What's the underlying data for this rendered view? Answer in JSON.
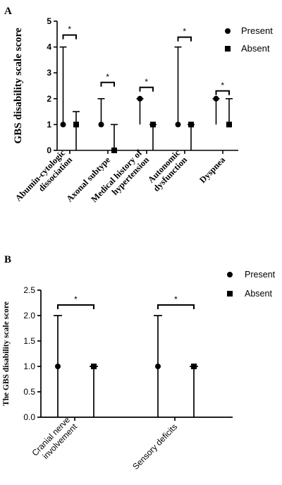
{
  "chart_data": [
    {
      "panel": "A",
      "type": "scatter",
      "ylabel": "GBS disability scale score",
      "ylim": [
        0,
        5
      ],
      "yticks": [
        0,
        1,
        2,
        3,
        4,
        5
      ],
      "legend": {
        "placement": "top-right",
        "entries": [
          "Present",
          "Absent"
        ]
      },
      "categories": [
        {
          "label": [
            "Abumin-cytologic",
            "dissociation"
          ],
          "present": {
            "median": 1,
            "low": 1,
            "high": 4
          },
          "absent": {
            "median": 1,
            "low": 0,
            "high": 1.5
          },
          "significance": "*"
        },
        {
          "label": [
            "Axonal subtype"
          ],
          "present": {
            "median": 1,
            "low": 1,
            "high": 2
          },
          "absent": {
            "median": 0,
            "low": 0,
            "high": 1
          },
          "significance": "*"
        },
        {
          "label": [
            "Medical history of",
            "hypertension"
          ],
          "present": {
            "median": 2,
            "low": 1,
            "high": 2
          },
          "absent": {
            "median": 1,
            "low": 0,
            "high": 1
          },
          "significance": "*"
        },
        {
          "label": [
            "Autonomic",
            "dysfunction"
          ],
          "present": {
            "median": 1,
            "low": 1,
            "high": 4
          },
          "absent": {
            "median": 1,
            "low": 0,
            "high": 1
          },
          "significance": "*"
        },
        {
          "label": [
            "Dyspnea"
          ],
          "present": {
            "median": 2,
            "low": 1,
            "high": 2
          },
          "absent": {
            "median": 1,
            "low": 1,
            "high": 2
          },
          "significance": "*"
        }
      ]
    },
    {
      "panel": "B",
      "type": "scatter",
      "ylabel": "The GBS disability scale score",
      "ylim": [
        0,
        2.5
      ],
      "yticks": [
        "0.0",
        "0.5",
        "1.0",
        "1.5",
        "2.0",
        "2.5"
      ],
      "legend": {
        "placement": "top-right",
        "entries": [
          "Present",
          "Absent"
        ]
      },
      "categories": [
        {
          "label": [
            "Cranial nerve",
            "involvement"
          ],
          "present": {
            "median": 1,
            "low": 0,
            "high": 2
          },
          "absent": {
            "median": 1,
            "low": 0,
            "high": 1
          },
          "significance": "*"
        },
        {
          "label": [
            "Sensory deficits"
          ],
          "present": {
            "median": 1,
            "low": 0,
            "high": 2
          },
          "absent": {
            "median": 1,
            "low": 0,
            "high": 1
          },
          "significance": "*"
        }
      ]
    }
  ]
}
